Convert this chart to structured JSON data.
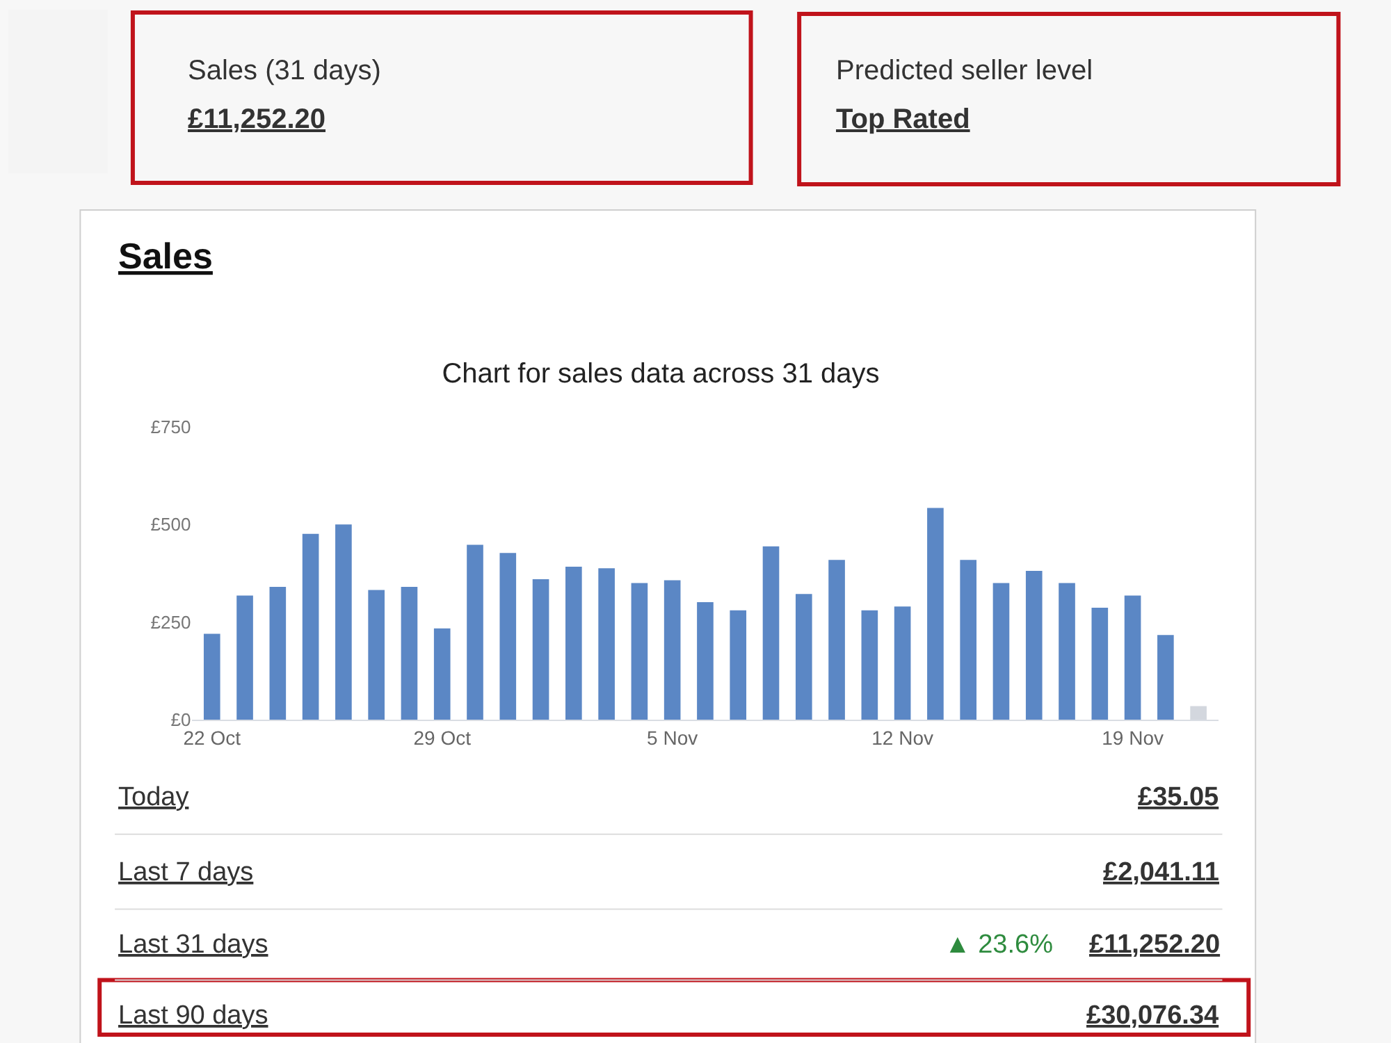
{
  "chart_data": {
    "type": "bar",
    "title": "Chart for sales data across 31 days",
    "categories": [
      "22 Oct",
      null,
      null,
      null,
      null,
      null,
      null,
      "29 Oct",
      null,
      null,
      null,
      null,
      null,
      null,
      "5 Nov",
      null,
      null,
      null,
      null,
      null,
      null,
      "12 Nov",
      null,
      null,
      null,
      null,
      null,
      null,
      "19 Nov",
      null,
      null
    ],
    "values": [
      220,
      318,
      340,
      476,
      500,
      332,
      340,
      234,
      448,
      427,
      360,
      392,
      388,
      350,
      357,
      301,
      280,
      444,
      322,
      409,
      280,
      290,
      542,
      409,
      350,
      381,
      350,
      287,
      318,
      217,
      35
    ],
    "colors": [
      "#5b87c5",
      "#5b87c5",
      "#5b87c5",
      "#5b87c5",
      "#5b87c5",
      "#5b87c5",
      "#5b87c5",
      "#5b87c5",
      "#5b87c5",
      "#5b87c5",
      "#5b87c5",
      "#5b87c5",
      "#5b87c5",
      "#5b87c5",
      "#5b87c5",
      "#5b87c5",
      "#5b87c5",
      "#5b87c5",
      "#5b87c5",
      "#5b87c5",
      "#5b87c5",
      "#5b87c5",
      "#5b87c5",
      "#5b87c5",
      "#5b87c5",
      "#5b87c5",
      "#5b87c5",
      "#5b87c5",
      "#5b87c5",
      "#5b87c5",
      "#d3d7de"
    ],
    "ylim": [
      0,
      750
    ],
    "yticks": [
      {
        "value": 0,
        "label": "£0"
      },
      {
        "value": 250,
        "label": "£250"
      },
      {
        "value": 500,
        "label": "£500"
      },
      {
        "value": 750,
        "label": "£750"
      }
    ],
    "annotations": [
      "Sales (31 days)",
      "£11,252.20",
      "Predicted seller level",
      "Top Rated",
      "Sales",
      "Today",
      "£35.05",
      "Last 7 days",
      "£2,041.11",
      "Last 31 days",
      "▲ 23.6%",
      "£11,252.20",
      "Last 90 days",
      "£30,076.34"
    ]
  }
}
